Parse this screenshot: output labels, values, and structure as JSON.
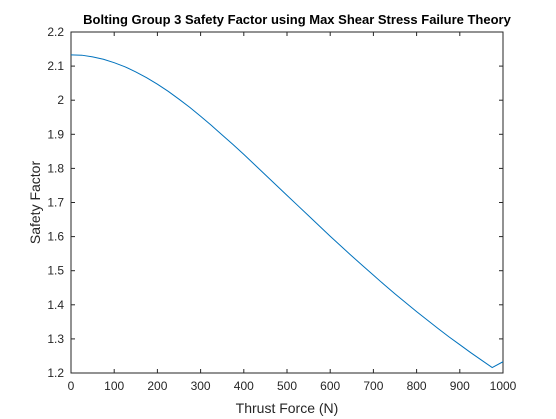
{
  "chart_data": {
    "type": "line",
    "title": "Bolting Group 3 Safety Factor using Max Shear Stress Failure Theory",
    "xlabel": "Thrust Force (N)",
    "ylabel": "Safety Factor",
    "xlim": [
      0,
      1000
    ],
    "ylim": [
      1.2,
      2.2
    ],
    "xticks": [
      0,
      100,
      200,
      300,
      400,
      500,
      600,
      700,
      800,
      900,
      1000
    ],
    "xtick_labels": [
      "0",
      "100",
      "200",
      "300",
      "400",
      "500",
      "600",
      "700",
      "800",
      "900",
      "1000"
    ],
    "yticks": [
      1.2,
      1.3,
      1.4,
      1.5,
      1.6,
      1.7,
      1.8,
      1.9,
      2.0,
      2.1,
      2.2
    ],
    "ytick_labels": [
      "1.2",
      "1.3",
      "1.4",
      "1.5",
      "1.6",
      "1.7",
      "1.8",
      "1.9",
      "2",
      "2.1",
      "2.2"
    ],
    "grid": false,
    "line_color": "#0072BD",
    "series": [
      {
        "x": [
          0,
          25,
          50,
          75,
          100,
          125,
          150,
          175,
          200,
          225,
          250,
          275,
          300,
          325,
          350,
          375,
          400,
          425,
          450,
          475,
          500,
          525,
          550,
          575,
          600,
          625,
          650,
          675,
          700,
          725,
          750,
          775,
          800,
          825,
          850,
          875,
          900,
          925,
          950,
          975,
          1000
        ],
        "y": [
          2.133,
          2.132,
          2.127,
          2.12,
          2.11,
          2.098,
          2.083,
          2.066,
          2.047,
          2.026,
          2.003,
          1.979,
          1.953,
          1.926,
          1.898,
          1.87,
          1.841,
          1.811,
          1.781,
          1.751,
          1.721,
          1.691,
          1.661,
          1.631,
          1.601,
          1.572,
          1.543,
          1.515,
          1.487,
          1.459,
          1.432,
          1.406,
          1.38,
          1.355,
          1.33,
          1.306,
          1.283,
          1.26,
          1.238,
          1.216,
          1.233
        ]
      }
    ]
  }
}
